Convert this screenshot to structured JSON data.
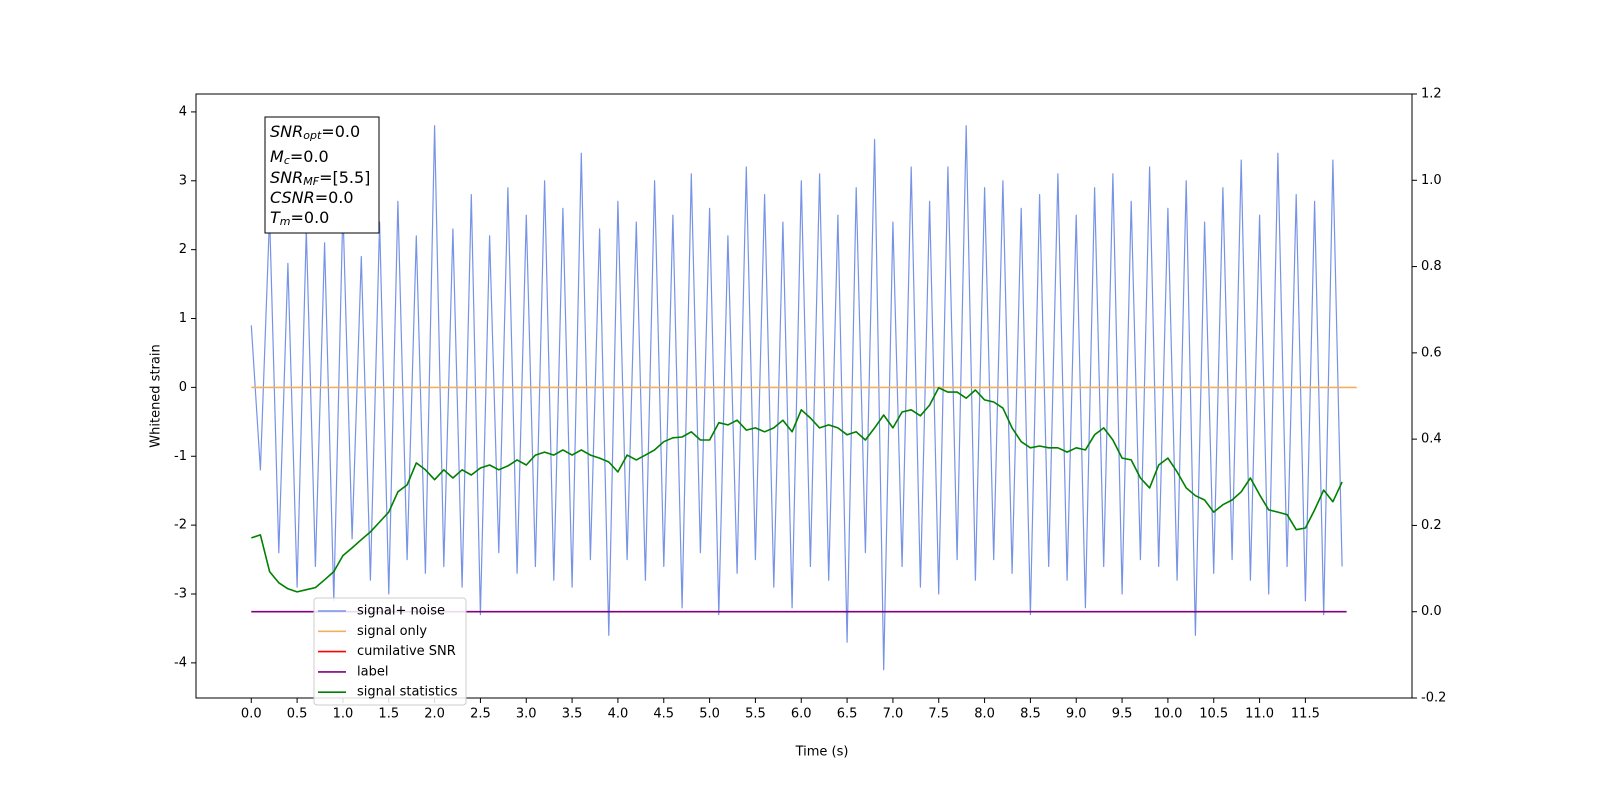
{
  "chart_data": {
    "type": "line",
    "xlabel": "Time (s)",
    "ylabel": "Whitened strain",
    "xlim": [
      -0.603,
      12.663
    ],
    "ylim": [
      -4.51,
      4.26
    ],
    "y2lim": [
      -0.2,
      1.2
    ],
    "xticks": [
      {
        "value": 0,
        "label": "0.0"
      },
      0.5,
      {
        "value": 1,
        "label": "1.0"
      },
      1.5,
      {
        "value": 2,
        "label": "2.0"
      },
      2.5,
      {
        "value": 3,
        "label": "3.0"
      },
      3.5,
      {
        "value": 4,
        "label": "4.0"
      },
      4.5,
      {
        "value": 5,
        "label": "5.0"
      },
      5.5,
      {
        "value": 6,
        "label": "6.0"
      },
      6.5,
      {
        "value": 7,
        "label": "7.0"
      },
      7.5,
      {
        "value": 8,
        "label": "8.0"
      },
      8.5,
      {
        "value": 9,
        "label": "9.0"
      },
      9.5,
      {
        "value": 10,
        "label": "10.0"
      },
      10.5,
      {
        "value": 11,
        "label": "11.0"
      },
      11.5
    ],
    "yticks": [
      -4,
      -3,
      -2,
      -1,
      0,
      1,
      2,
      3,
      4
    ],
    "y2ticks": [
      -0.2,
      {
        "value": 0,
        "label": "0.0"
      },
      0.2,
      0.4,
      0.6,
      0.8,
      {
        "value": 1,
        "label": "1.0"
      },
      1.2
    ],
    "x": [
      0,
      0.1,
      0.2,
      0.3,
      0.4,
      0.5,
      0.6,
      0.7,
      0.8,
      0.9,
      1,
      1.1,
      1.2,
      1.3,
      1.4,
      1.5,
      1.6,
      1.7,
      1.8,
      1.9,
      2,
      2.1,
      2.2,
      2.3,
      2.4,
      2.5,
      2.6,
      2.7,
      2.8,
      2.9,
      3,
      3.1,
      3.2,
      3.3,
      3.4,
      3.5,
      3.6,
      3.7,
      3.8,
      3.9,
      4,
      4.1,
      4.2,
      4.3,
      4.4,
      4.5,
      4.6,
      4.7,
      4.8,
      4.9,
      5,
      5.1,
      5.2,
      5.3,
      5.4,
      5.5,
      5.6,
      5.7,
      5.8,
      5.9,
      6,
      6.1,
      6.2,
      6.3,
      6.4,
      6.5,
      6.6,
      6.7,
      6.8,
      6.9,
      7,
      7.1,
      7.2,
      7.3,
      7.4,
      7.5,
      7.6,
      7.7,
      7.8,
      7.9,
      8,
      8.1,
      8.2,
      8.3,
      8.4,
      8.5,
      8.6,
      8.7,
      8.8,
      8.9,
      9,
      9.1,
      9.2,
      9.3,
      9.4,
      9.5,
      9.6,
      9.7,
      9.8,
      9.9,
      10,
      10.1,
      10.2,
      10.3,
      10.4,
      10.5,
      10.6,
      10.7,
      10.8,
      10.9,
      11,
      11.1,
      11.2,
      11.3,
      11.4,
      11.5,
      11.6,
      11.7,
      11.8,
      11.9
    ],
    "series": [
      {
        "name": "signal+ noise",
        "color": "#7793e6",
        "values": [
          0.9,
          -1.2,
          2.5,
          -2.4,
          1.8,
          -2.9,
          2.3,
          -2.6,
          2.1,
          -3.1,
          2.6,
          -2.2,
          1.9,
          -2.8,
          2.4,
          -3.0,
          2.7,
          -2.5,
          2.2,
          -2.7,
          3.8,
          -2.6,
          2.3,
          -2.9,
          2.8,
          -3.3,
          2.2,
          -2.4,
          2.9,
          -2.7,
          2.5,
          -2.6,
          3.0,
          -2.8,
          2.6,
          -2.9,
          3.4,
          -2.5,
          2.3,
          -3.6,
          2.7,
          -2.5,
          2.4,
          -2.8,
          3.0,
          -2.6,
          2.5,
          -3.2,
          3.1,
          -2.4,
          2.6,
          -3.3,
          2.2,
          -2.7,
          3.2,
          -2.5,
          2.8,
          -2.9,
          2.4,
          -3.2,
          3.0,
          -2.6,
          3.1,
          -2.8,
          2.5,
          -3.7,
          2.9,
          -2.4,
          3.6,
          -4.1,
          2.4,
          -2.6,
          3.2,
          -2.9,
          2.7,
          -3.0,
          3.2,
          -2.5,
          3.8,
          -2.8,
          2.9,
          -2.5,
          3.0,
          -2.7,
          2.6,
          -3.3,
          2.8,
          -2.6,
          3.1,
          -2.8,
          2.5,
          -3.2,
          2.9,
          -2.6,
          3.1,
          -3.0,
          2.7,
          -2.5,
          3.2,
          -2.6,
          2.6,
          -2.8,
          3.0,
          -3.6,
          2.4,
          -2.7,
          2.9,
          -2.5,
          3.3,
          -2.8,
          2.5,
          -3.0,
          3.4,
          -2.6,
          2.8,
          -3.1,
          2.7,
          -3.3,
          3.3,
          -2.6
        ]
      },
      {
        "name": "signal only",
        "color": "#f0b060",
        "x": [
          0,
          12.06
        ],
        "values": [
          0,
          0
        ]
      },
      {
        "name": "cumilative SNR",
        "color": "#ff0000",
        "x": [],
        "values": []
      },
      {
        "name": "label",
        "color": "#800080",
        "axis": "y2",
        "x": [
          0,
          11.95
        ],
        "values": [
          0,
          0
        ]
      },
      {
        "name": "signal statistics",
        "color": "#008000",
        "axis": "y2",
        "values": [
          0.171,
          0.178,
          0.093,
          0.067,
          0.053,
          0.046,
          0.051,
          0.056,
          0.074,
          0.093,
          0.13,
          0.148,
          0.167,
          0.185,
          0.208,
          0.231,
          0.278,
          0.294,
          0.345,
          0.329,
          0.306,
          0.329,
          0.31,
          0.329,
          0.317,
          0.333,
          0.34,
          0.329,
          0.338,
          0.352,
          0.34,
          0.363,
          0.37,
          0.363,
          0.375,
          0.363,
          0.375,
          0.363,
          0.356,
          0.347,
          0.324,
          0.363,
          0.352,
          0.363,
          0.375,
          0.394,
          0.403,
          0.405,
          0.417,
          0.398,
          0.398,
          0.438,
          0.433,
          0.444,
          0.421,
          0.426,
          0.417,
          0.426,
          0.444,
          0.417,
          0.468,
          0.449,
          0.426,
          0.433,
          0.426,
          0.41,
          0.417,
          0.398,
          0.426,
          0.456,
          0.426,
          0.463,
          0.468,
          0.454,
          0.479,
          0.519,
          0.509,
          0.509,
          0.495,
          0.514,
          0.491,
          0.486,
          0.472,
          0.426,
          0.394,
          0.38,
          0.384,
          0.38,
          0.38,
          0.37,
          0.38,
          0.375,
          0.41,
          0.426,
          0.398,
          0.356,
          0.352,
          0.31,
          0.287,
          0.34,
          0.356,
          0.324,
          0.287,
          0.269,
          0.259,
          0.231,
          0.248,
          0.259,
          0.278,
          0.31,
          0.271,
          0.236,
          0.231,
          0.225,
          0.19,
          0.194,
          0.236,
          0.282,
          0.255,
          0.301
        ]
      }
    ],
    "annotation": [
      [
        "SNR",
        "opt",
        "=0.0"
      ],
      [
        "M",
        "c",
        "=0.0"
      ],
      [
        "SNR",
        "MF",
        "=[5.5]"
      ],
      [
        "CSNR",
        "",
        "=0.0"
      ],
      [
        "T",
        "m",
        "=0.0"
      ]
    ]
  }
}
